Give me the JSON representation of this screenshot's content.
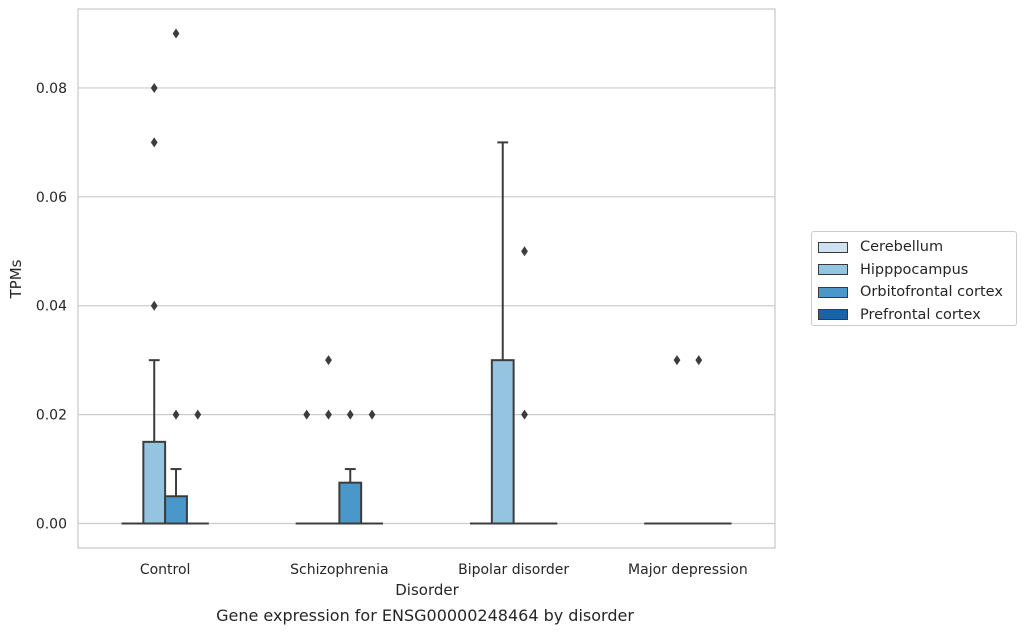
{
  "caption": "Gene expression for ENSG00000248464 by disorder",
  "chart_data": {
    "type": "box",
    "xlabel": "Disorder",
    "ylabel": "TPMs",
    "ylim": [
      -0.0045,
      0.0945
    ],
    "yticks": [
      "0.00",
      "0.02",
      "0.04",
      "0.06",
      "0.08"
    ],
    "ytick_values": [
      0,
      0.02,
      0.04,
      0.06,
      0.08
    ],
    "grid": "horizontal",
    "legend_position": "right",
    "categories": [
      "Control",
      "Schizophrenia",
      "Bipolar disorder",
      "Major depression"
    ],
    "series": [
      {
        "name": "Cerebellum",
        "color": "#d0e1f2",
        "boxes": [
          {
            "q1": 0,
            "median": 0,
            "q3": 0,
            "whisker_low": 0,
            "whisker_high": 0,
            "outliers": []
          },
          {
            "q1": 0,
            "median": 0,
            "q3": 0,
            "whisker_low": 0,
            "whisker_high": 0,
            "outliers": [
              0.02
            ]
          },
          {
            "q1": 0,
            "median": 0,
            "q3": 0,
            "whisker_low": 0,
            "whisker_high": 0,
            "outliers": []
          },
          {
            "q1": 0,
            "median": 0,
            "q3": 0,
            "whisker_low": 0,
            "whisker_high": 0,
            "outliers": []
          }
        ]
      },
      {
        "name": "Hipppocampus",
        "color": "#94c4df",
        "boxes": [
          {
            "q1": 0,
            "median": 0,
            "q3": 0.015,
            "whisker_low": 0,
            "whisker_high": 0.03,
            "outliers": [
              0.04,
              0.07,
              0.08
            ]
          },
          {
            "q1": 0,
            "median": 0,
            "q3": 0,
            "whisker_low": 0,
            "whisker_high": 0,
            "outliers": [
              0.02,
              0.03
            ]
          },
          {
            "q1": 0,
            "median": 0,
            "q3": 0.03,
            "whisker_low": 0,
            "whisker_high": 0.07,
            "outliers": []
          },
          {
            "q1": 0,
            "median": 0,
            "q3": 0,
            "whisker_low": 0,
            "whisker_high": 0,
            "outliers": [
              0.03
            ]
          }
        ]
      },
      {
        "name": "Orbitofrontal cortex",
        "color": "#4a98c9",
        "boxes": [
          {
            "q1": 0,
            "median": 0,
            "q3": 0.005,
            "whisker_low": 0,
            "whisker_high": 0.01,
            "outliers": [
              0.02,
              0.09
            ]
          },
          {
            "q1": 0,
            "median": 0,
            "q3": 0.0075,
            "whisker_low": 0,
            "whisker_high": 0.01,
            "outliers": [
              0.02
            ]
          },
          {
            "q1": 0,
            "median": 0,
            "q3": 0,
            "whisker_low": 0,
            "whisker_high": 0,
            "outliers": [
              0.02,
              0.05
            ]
          },
          {
            "q1": 0,
            "median": 0,
            "q3": 0,
            "whisker_low": 0,
            "whisker_high": 0,
            "outliers": [
              0.03
            ]
          }
        ]
      },
      {
        "name": "Prefrontal cortex",
        "color": "#1764ab",
        "boxes": [
          {
            "q1": 0,
            "median": 0,
            "q3": 0,
            "whisker_low": 0,
            "whisker_high": 0,
            "outliers": [
              0.02
            ]
          },
          {
            "q1": 0,
            "median": 0,
            "q3": 0,
            "whisker_low": 0,
            "whisker_high": 0,
            "outliers": [
              0.02
            ]
          },
          {
            "q1": 0,
            "median": 0,
            "q3": 0,
            "whisker_low": 0,
            "whisker_high": 0,
            "outliers": []
          },
          {
            "q1": 0,
            "median": 0,
            "q3": 0,
            "whisker_low": 0,
            "whisker_high": 0,
            "outliers": []
          }
        ]
      }
    ]
  }
}
